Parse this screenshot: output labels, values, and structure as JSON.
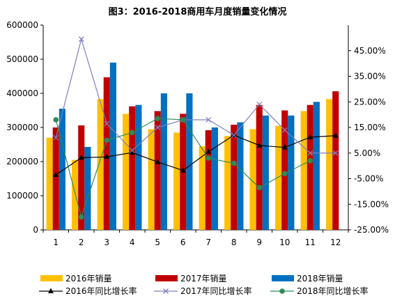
{
  "chart_data": {
    "type": "bar",
    "title": "图3：2016-2018商用车月度销量变化情况",
    "categories": [
      "1",
      "2",
      "3",
      "4",
      "5",
      "6",
      "7",
      "8",
      "9",
      "10",
      "11",
      "12"
    ],
    "series": [
      {
        "name": "2016年销量",
        "kind": "bar",
        "axis": "left",
        "color": "#FFC000",
        "values": [
          270000,
          205000,
          383000,
          340000,
          295000,
          285000,
          245000,
          275000,
          295000,
          305000,
          348000,
          383000
        ]
      },
      {
        "name": "2017年销量",
        "kind": "bar",
        "axis": "left",
        "color": "#C00000",
        "values": [
          300000,
          306000,
          447000,
          362000,
          348000,
          340000,
          292000,
          308000,
          366000,
          350000,
          366000,
          406000
        ]
      },
      {
        "name": "2018年销量",
        "kind": "bar",
        "axis": "left",
        "color": "#0070C0",
        "values": [
          355000,
          243000,
          490000,
          366000,
          400000,
          400000,
          300000,
          315000,
          335000,
          335000,
          375000,
          null
        ]
      },
      {
        "name": "2016年同比增长率",
        "kind": "line",
        "axis": "right",
        "color": "#000000",
        "marker": "triangle",
        "values": [
          -0.035,
          0.032,
          0.035,
          0.052,
          0.015,
          -0.018,
          0.055,
          0.12,
          0.08,
          0.072,
          0.112,
          0.118
        ]
      },
      {
        "name": "2017年同比增长率",
        "kind": "line",
        "axis": "right",
        "color": "#7F7FBF",
        "marker": "x",
        "values": [
          0.11,
          0.495,
          0.165,
          0.06,
          0.15,
          0.18,
          0.18,
          0.12,
          0.24,
          0.14,
          0.05,
          0.05
        ]
      },
      {
        "name": "2018年同比增长率",
        "kind": "line",
        "axis": "right",
        "color": "#2E8B57",
        "marker": "circle",
        "values": [
          0.18,
          -0.2,
          0.1,
          0.13,
          0.185,
          0.18,
          0.03,
          0.01,
          -0.085,
          -0.03,
          0.02,
          null
        ]
      }
    ],
    "yleft": {
      "min": 0,
      "max": 600000,
      "step": 100000,
      "ticks": [
        "0",
        "100000",
        "200000",
        "300000",
        "400000",
        "500000",
        "600000"
      ]
    },
    "yright": {
      "min": -0.25,
      "max": 0.55,
      "step": 0.1,
      "ticks": [
        "-25.00%",
        "-15.00%",
        "-5.00%",
        "5.00%",
        "15.00%",
        "25.00%",
        "35.00%",
        "45.00%"
      ]
    },
    "legend_position": "bottom",
    "grid": false
  }
}
